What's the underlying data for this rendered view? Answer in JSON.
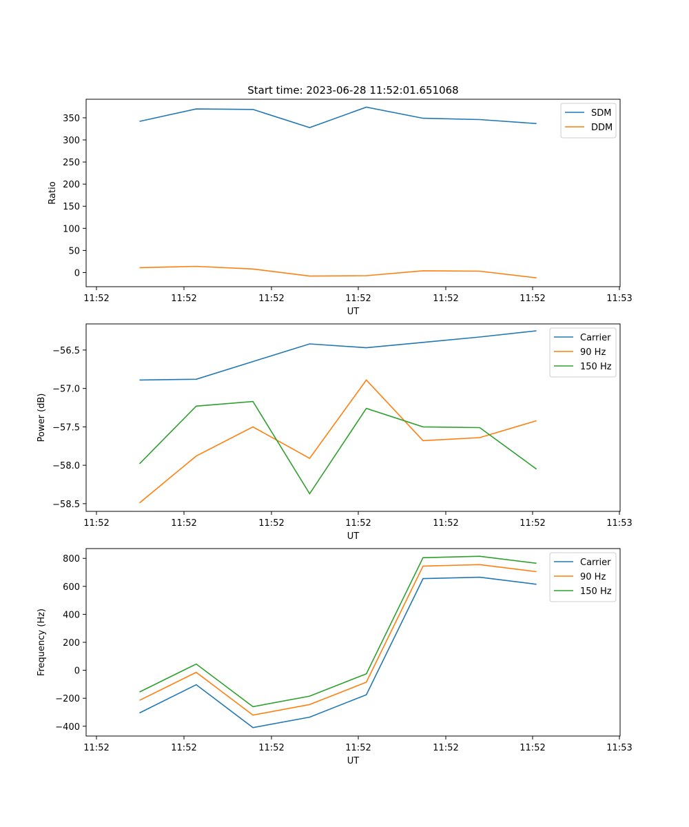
{
  "figure": {
    "title": "Start time: 2023-06-28 11:52:01.651068"
  },
  "colors": {
    "blue": "#1f77b4",
    "orange": "#ff7f0e",
    "green": "#2ca02c"
  },
  "chart_data": [
    {
      "type": "line",
      "title": "Start time: 2023-06-28 11:52:01.651068",
      "xlabel": "UT",
      "ylabel": "Ratio",
      "x": [
        0,
        1,
        2,
        3,
        4,
        5,
        6,
        7
      ],
      "x_tick_labels": [
        "11:52",
        "11:52",
        "11:52",
        "11:52",
        "11:52",
        "11:52",
        "11:52",
        "11:53"
      ],
      "ylim": [
        -32,
        392
      ],
      "y_ticks": [
        0,
        50,
        100,
        150,
        200,
        250,
        300,
        350
      ],
      "legend": "top-right",
      "grid": false,
      "series": [
        {
          "name": "SDM",
          "color": "#1f77b4",
          "values": [
            342,
            370,
            369,
            328,
            374,
            349,
            346,
            337
          ]
        },
        {
          "name": "DDM",
          "color": "#ff7f0e",
          "values": [
            11,
            14,
            8,
            -8,
            -7,
            4,
            3,
            -12
          ]
        }
      ]
    },
    {
      "type": "line",
      "xlabel": "UT",
      "ylabel": "Power (dB)",
      "x": [
        0,
        1,
        2,
        3,
        4,
        5,
        6,
        7
      ],
      "x_tick_labels": [
        "11:52",
        "11:52",
        "11:52",
        "11:52",
        "11:52",
        "11:52",
        "11:52",
        "11:53"
      ],
      "ylim": [
        -58.6,
        -56.16
      ],
      "y_ticks": [
        -58.5,
        -58.0,
        -57.5,
        -57.0,
        -56.5
      ],
      "y_tick_labels": [
        "−58.5",
        "−58.0",
        "−57.5",
        "−57.0",
        "−56.5"
      ],
      "legend": "top-right",
      "grid": false,
      "series": [
        {
          "name": "Carrier",
          "color": "#1f77b4",
          "values": [
            -56.89,
            -56.88,
            -56.65,
            -56.42,
            -56.47,
            -56.4,
            -56.33,
            -56.25
          ]
        },
        {
          "name": "90 Hz",
          "color": "#ff7f0e",
          "values": [
            -58.49,
            -57.88,
            -57.5,
            -57.91,
            -56.89,
            -57.68,
            -57.64,
            -57.42
          ]
        },
        {
          "name": "150 Hz",
          "color": "#2ca02c",
          "values": [
            -57.98,
            -57.23,
            -57.17,
            -58.37,
            -57.26,
            -57.5,
            -57.51,
            -58.05
          ]
        }
      ]
    },
    {
      "type": "line",
      "xlabel": "UT",
      "ylabel": "Frequency (Hz)",
      "x": [
        0,
        1,
        2,
        3,
        4,
        5,
        6,
        7
      ],
      "x_tick_labels": [
        "11:52",
        "11:52",
        "11:52",
        "11:52",
        "11:52",
        "11:52",
        "11:52",
        "11:53"
      ],
      "ylim": [
        -470,
        870
      ],
      "y_ticks": [
        -400,
        -200,
        0,
        200,
        400,
        600,
        800
      ],
      "y_tick_labels": [
        "−400",
        "−200",
        "0",
        "200",
        "400",
        "600",
        "800"
      ],
      "legend": "top-right",
      "grid": false,
      "series": [
        {
          "name": "Carrier",
          "color": "#1f77b4",
          "values": [
            -305,
            -103,
            -410,
            -335,
            -175,
            655,
            665,
            615
          ]
        },
        {
          "name": "90 Hz",
          "color": "#ff7f0e",
          "values": [
            -215,
            -15,
            -320,
            -245,
            -85,
            745,
            755,
            705
          ]
        },
        {
          "name": "150 Hz",
          "color": "#2ca02c",
          "values": [
            -155,
            45,
            -260,
            -185,
            -25,
            805,
            815,
            765
          ]
        }
      ]
    }
  ]
}
